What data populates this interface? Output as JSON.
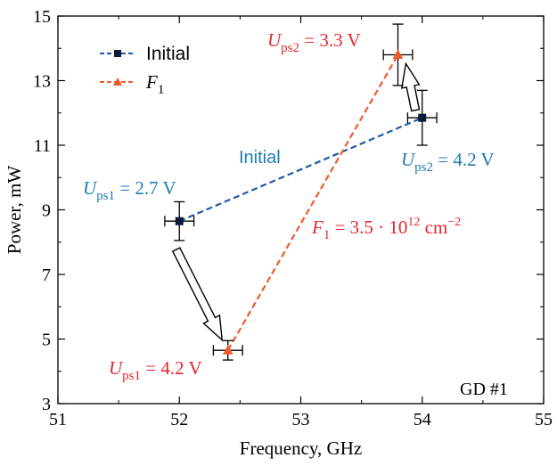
{
  "chart_data": {
    "type": "scatter",
    "xlabel": "Frequency, GHz",
    "ylabel": "Power, mW",
    "xlim": [
      51,
      55
    ],
    "ylim": [
      3,
      15
    ],
    "xticks": [
      "51",
      "52",
      "53",
      "54",
      "55"
    ],
    "yticks": [
      "3",
      "5",
      "7",
      "9",
      "11",
      "13",
      "15"
    ],
    "grid": false,
    "legend_position": "top-left",
    "series": [
      {
        "name": "Initial",
        "color": "#1f5aa6",
        "marker": "square",
        "line": "dashed",
        "points": [
          {
            "x": 52.0,
            "y": 8.65,
            "xerr": 0.12,
            "yerr": 0.6
          },
          {
            "x": 54.0,
            "y": 11.85,
            "xerr": 0.12,
            "yerr": 0.85
          }
        ]
      },
      {
        "name_base": "F",
        "name_sub": "1",
        "color": "#f0592a",
        "marker": "triangle",
        "line": "dashed",
        "points": [
          {
            "x": 52.4,
            "y": 4.65,
            "xerr": 0.12,
            "yerr": 0.3
          },
          {
            "x": 53.8,
            "y": 13.8,
            "xerr": 0.12,
            "yerr": 0.95
          }
        ]
      }
    ],
    "annotations": {
      "corner_label": "GD #1",
      "initial_line_label": "Initial",
      "ups1_initial": {
        "var": "U",
        "sub": "ps1",
        "rest": " = 2.7 V"
      },
      "ups2_initial": {
        "var": "U",
        "sub": "ps2",
        "rest": " = 4.2 V"
      },
      "ups2_f1": {
        "var": "U",
        "sub": "ps2",
        "rest": " = 3.3 V"
      },
      "ups1_f1": {
        "var": "U",
        "sub": "ps1",
        "rest": " = 4.2 V"
      },
      "f1_fluence": {
        "var": "F",
        "sub": "1",
        "mid": " = 3.5 · 10",
        "sup": "12",
        "unit": " cm",
        "unit_sup": "−2"
      }
    },
    "colors": {
      "initial_text": "#1e7bb0",
      "f1_text": "#e4262c",
      "axis": "#000000",
      "arrow_fill": "#ffffff",
      "arrow_stroke": "#000000"
    }
  }
}
